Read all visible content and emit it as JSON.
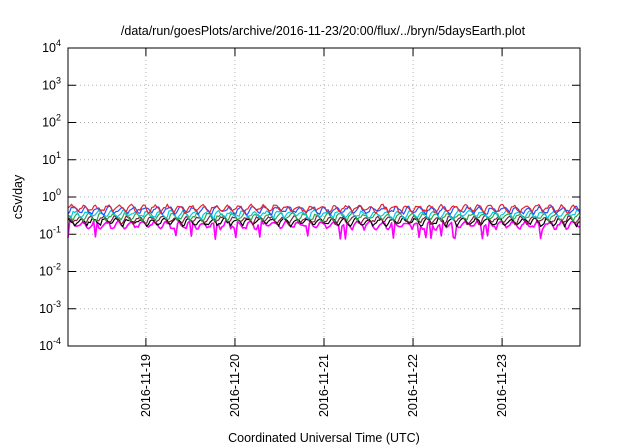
{
  "chart_data": {
    "type": "line",
    "title": "/data/run/goesPlots/archive/2016-11-23/20:00/flux/../bryn/5daysEarth.plot",
    "xlabel": "Coordinated Universal Time (UTC)",
    "ylabel": "cSv/day",
    "yscale": "log",
    "ylim_exponents": [
      -4,
      4
    ],
    "y_tick_base": "10",
    "y_tick_exponents": [
      "-4",
      "-3",
      "-2",
      "-1",
      "0",
      "1",
      "2",
      "3",
      "4"
    ],
    "xlim": [
      "2016-11-18 03:00",
      "2016-11-23 21:00"
    ],
    "x_ticks": [
      "2016-11-19",
      "2016-11-20",
      "2016-11-21",
      "2016-11-22",
      "2016-11-23"
    ],
    "grid": true,
    "legend": "none",
    "series": [
      {
        "color": "#ff00ff",
        "approx_level": 0.18,
        "dip_level": 0.08
      },
      {
        "color": "#000000",
        "approx_level": 0.22
      },
      {
        "color": "#7f1f3f",
        "approx_level": 0.25
      },
      {
        "color": "#2aa84a",
        "approx_level": 0.3
      },
      {
        "color": "#00c8e6",
        "approx_level": 0.35
      },
      {
        "color": "#1f4fff",
        "approx_level": 0.45
      },
      {
        "color": "#e8222a",
        "approx_level": 0.5
      }
    ]
  }
}
